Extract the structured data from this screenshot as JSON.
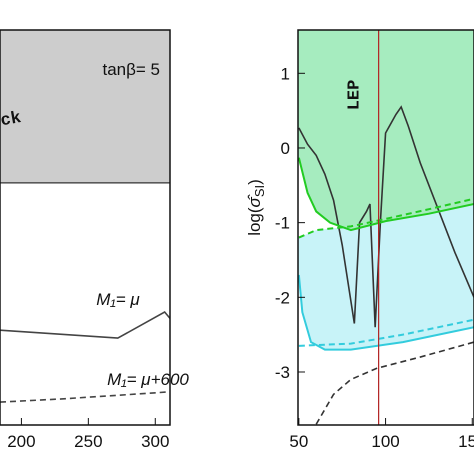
{
  "chart_data": [
    {
      "type": "line",
      "xlim": [
        184,
        311
      ],
      "ylim": [
        0,
        1
      ],
      "xticks": [
        200,
        250,
        300
      ],
      "region": {
        "label": "tanβ= 5",
        "ymin": 0.613,
        "color": "#cdcdcd"
      },
      "overlay_text": "ck",
      "series": [
        {
          "name": "M₁= μ",
          "color": "#444444",
          "dash": false,
          "x": [
            184,
            272,
            307,
            311
          ],
          "values": [
            0.24,
            0.22,
            0.286,
            0.27
          ]
        },
        {
          "name": "M₁= μ+600",
          "color": "#444444",
          "dash": true,
          "x": [
            184,
            230,
            280,
            311
          ],
          "values": [
            0.058,
            0.066,
            0.077,
            0.084
          ]
        }
      ]
    },
    {
      "type": "line",
      "xlim": [
        49.5,
        151
      ],
      "ylim": [
        -3.71,
        1.58
      ],
      "xticks": [
        50,
        100,
        150
      ],
      "yticks": [
        1,
        0,
        -1,
        -2,
        -3
      ],
      "y_label": [
        "log(",
        "σ̂",
        "SI",
        ")"
      ],
      "vline": {
        "label": "LEP",
        "x": 96,
        "color": "#b22222"
      },
      "bands": [
        {
          "color": "#a6ecbf"
        },
        {
          "color": "#c8f3f8"
        }
      ],
      "series": [
        {
          "color": "#333333",
          "dash": false,
          "x": [
            50,
            55,
            60,
            65,
            70,
            75,
            82,
            85,
            89,
            91,
            94,
            97,
            100,
            106,
            109,
            113,
            120,
            130,
            140,
            151
          ],
          "values": [
            0.27,
            0.05,
            -0.1,
            -0.35,
            -0.7,
            -1.3,
            -2.35,
            -1.0,
            -0.85,
            -0.75,
            -2.4,
            -1.0,
            0.2,
            0.45,
            0.55,
            0.3,
            -0.2,
            -0.8,
            -1.4,
            -2.0
          ]
        },
        {
          "color": "#22cc22",
          "dash": false,
          "x": [
            50,
            55,
            60,
            68,
            80,
            100,
            125,
            151
          ],
          "values": [
            -0.13,
            -0.6,
            -0.85,
            -1.0,
            -1.1,
            -0.98,
            -0.88,
            -0.75
          ]
        },
        {
          "color": "#22cc22",
          "dash": true,
          "x": [
            50,
            60,
            80,
            100,
            125,
            151
          ],
          "values": [
            -1.2,
            -1.1,
            -1.05,
            -0.95,
            -0.82,
            -0.68
          ]
        },
        {
          "color": "#33ccdd",
          "dash": false,
          "x": [
            50,
            52,
            57,
            65,
            80,
            110,
            151
          ],
          "values": [
            -1.7,
            -2.2,
            -2.6,
            -2.7,
            -2.7,
            -2.6,
            -2.4
          ]
        },
        {
          "color": "#33ccdd",
          "dash": true,
          "x": [
            50,
            80,
            110,
            151
          ],
          "values": [
            -2.65,
            -2.62,
            -2.5,
            -2.3
          ]
        },
        {
          "color": "#333333",
          "dash": true,
          "x": [
            60,
            70,
            80,
            95,
            120,
            151
          ],
          "values": [
            -3.7,
            -3.3,
            -3.1,
            -2.95,
            -2.8,
            -2.6
          ]
        }
      ]
    }
  ]
}
